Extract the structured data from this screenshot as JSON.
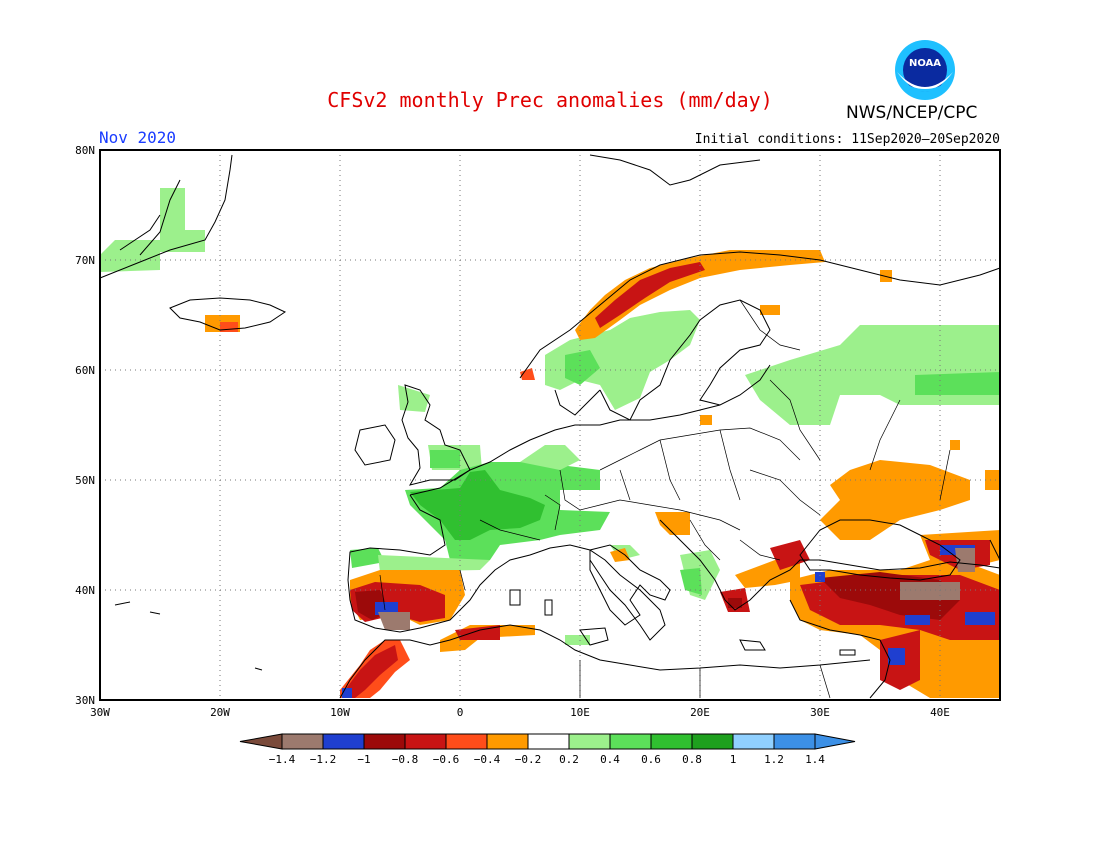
{
  "title": "CFSv2 monthly Prec anomalies (mm/day)",
  "agency": "NWS/NCEP/CPC",
  "logo_text": "NOAA",
  "month": "Nov 2020",
  "initial_conditions": "Initial conditions: 11Sep2020—20Sep2020",
  "lat_labels": [
    "80N",
    "70N",
    "60N",
    "50N",
    "40N",
    "30N"
  ],
  "lon_labels": [
    "30W",
    "20W",
    "10W",
    "0",
    "10E",
    "20E",
    "30E",
    "40E"
  ],
  "legend": {
    "tick_labels": [
      "−1.4",
      "−1.2",
      "−1",
      "−0.8",
      "−0.6",
      "−0.4",
      "−0.2",
      "0.2",
      "0.4",
      "0.6",
      "0.8",
      "1",
      "1.2",
      "1.4"
    ],
    "colors": [
      "#7a4a3a",
      "#9c7a6e",
      "#1f3fd0",
      "#9c0a0a",
      "#c81414",
      "#ff4d1a",
      "#ff9a00",
      "#ffffff",
      "#9cf08c",
      "#5ce05a",
      "#30c030",
      "#1ea01e",
      "#90d0ff",
      "#3c90e6",
      "#3c90e6"
    ]
  },
  "colors": {
    "land_outline": "#000000",
    "grid": "#777777",
    "title": "#e00000",
    "month": "#1a3cff"
  }
}
